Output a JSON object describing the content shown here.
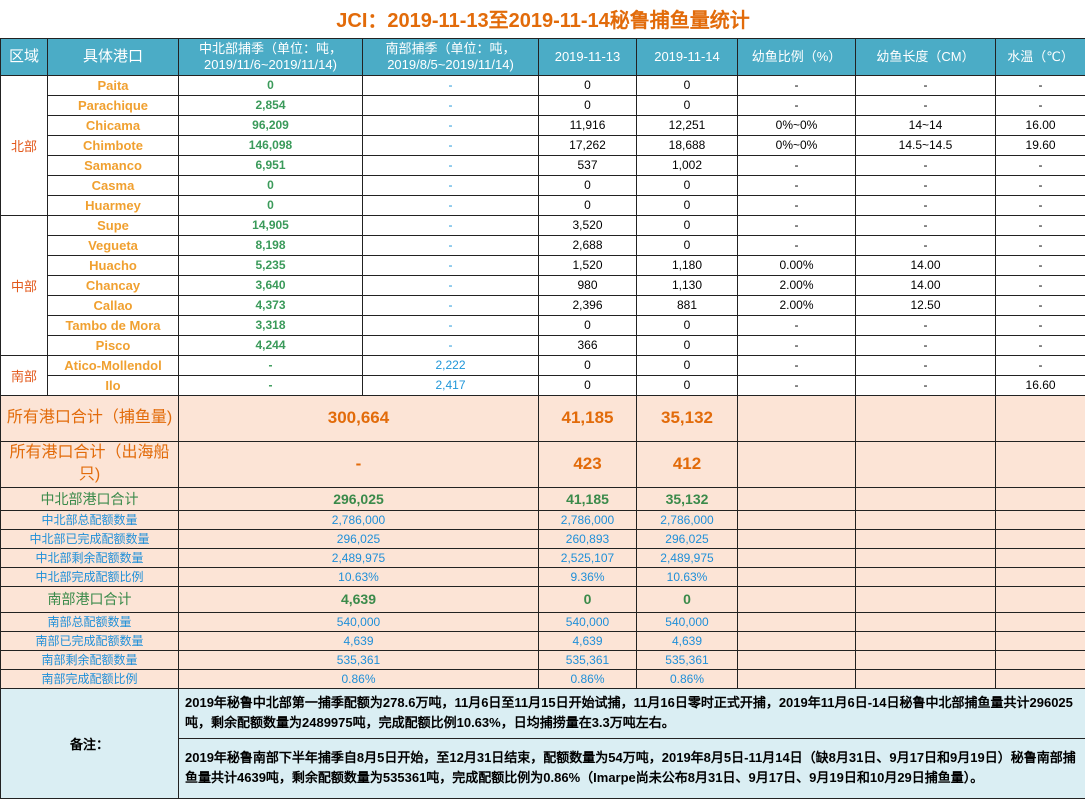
{
  "title": "JCI：2019-11-13至2019-11-14秘鲁捕鱼量统计",
  "headers": [
    "区域",
    "具体港口",
    "中北部捕季（单位：吨，2019/11/6~2019/11/14)",
    "南部捕季（单位：吨，2019/8/5~2019/11/14)",
    "2019-11-13",
    "2019-11-14",
    "幼鱼比例（%）",
    "幼鱼长度（CM）",
    "水温（℃）"
  ],
  "colors": {
    "header_bg": "#4bacc6",
    "summary_bg": "#fce4d6",
    "notes_bg": "#daeef3",
    "title": "#e26b0a",
    "port_name": "#f0a030",
    "north_value": "#3a9a5a",
    "south_value": "#1f96d8"
  },
  "regions": [
    {
      "name": "北部",
      "ports": [
        [
          "Paita",
          "0",
          "-",
          "0",
          "0",
          "-",
          "-",
          "-"
        ],
        [
          "Parachique",
          "2,854",
          "-",
          "0",
          "0",
          "-",
          "-",
          "-"
        ],
        [
          "Chicama",
          "96,209",
          "-",
          "11,916",
          "12,251",
          "0%~0%",
          "14~14",
          "16.00"
        ],
        [
          "Chimbote",
          "146,098",
          "-",
          "17,262",
          "18,688",
          "0%~0%",
          "14.5~14.5",
          "19.60"
        ],
        [
          "Samanco",
          "6,951",
          "-",
          "537",
          "1,002",
          "-",
          "-",
          "-"
        ],
        [
          "Casma",
          "0",
          "-",
          "0",
          "0",
          "-",
          "-",
          "-"
        ],
        [
          "Huarmey",
          "0",
          "-",
          "0",
          "0",
          "-",
          "-",
          "-"
        ]
      ]
    },
    {
      "name": "中部",
      "ports": [
        [
          "Supe",
          "14,905",
          "-",
          "3,520",
          "0",
          "-",
          "-",
          "-"
        ],
        [
          "Vegueta",
          "8,198",
          "-",
          "2,688",
          "0",
          "-",
          "-",
          "-"
        ],
        [
          "Huacho",
          "5,235",
          "-",
          "1,520",
          "1,180",
          "0.00%",
          "14.00",
          "-"
        ],
        [
          "Chancay",
          "3,640",
          "-",
          "980",
          "1,130",
          "2.00%",
          "14.00",
          "-"
        ],
        [
          "Callao",
          "4,373",
          "-",
          "2,396",
          "881",
          "2.00%",
          "12.50",
          "-"
        ],
        [
          "Tambo de Mora",
          "3,318",
          "-",
          "0",
          "0",
          "-",
          "-",
          "-"
        ],
        [
          "Pisco",
          "4,244",
          "-",
          "366",
          "0",
          "-",
          "-",
          "-"
        ]
      ]
    },
    {
      "name": "南部",
      "ports": [
        [
          "Atico-Mollendol",
          "-",
          "2,222",
          "0",
          "0",
          "-",
          "-",
          "-"
        ],
        [
          "Ilo",
          "-",
          "2,417",
          "0",
          "0",
          "-",
          "-",
          "16.60"
        ]
      ]
    }
  ],
  "summary": [
    {
      "type": "tot",
      "label": "所有港口合计（捕鱼量)",
      "season": "300,664",
      "d1": "41,185",
      "d2": "35,132"
    },
    {
      "type": "tot",
      "label": "所有港口合计（出海船只)",
      "season": "-",
      "d1": "423",
      "d2": "412"
    },
    {
      "type": "grn",
      "label": "中北部港口合计",
      "season": "296,025",
      "d1": "41,185",
      "d2": "35,132"
    },
    {
      "type": "blu",
      "label": "中北部总配额数量",
      "season": "2,786,000",
      "d1": "2,786,000",
      "d2": "2,786,000"
    },
    {
      "type": "blu",
      "label": "中北部已完成配额数量",
      "season": "296,025",
      "d1": "260,893",
      "d2": "296,025"
    },
    {
      "type": "blu",
      "label": "中北部剩余配额数量",
      "season": "2,489,975",
      "d1": "2,525,107",
      "d2": "2,489,975"
    },
    {
      "type": "blu",
      "label": "中北部完成配额比例",
      "season": "10.63%",
      "d1": "9.36%",
      "d2": "10.63%"
    },
    {
      "type": "grn",
      "label": "南部港口合计",
      "season": "4,639",
      "d1": "0",
      "d2": "0"
    },
    {
      "type": "blu",
      "label": "南部总配额数量",
      "season": "540,000",
      "d1": "540,000",
      "d2": "540,000"
    },
    {
      "type": "blu",
      "label": "南部已完成配额数量",
      "season": "4,639",
      "d1": "4,639",
      "d2": "4,639"
    },
    {
      "type": "blu",
      "label": "南部剩余配额数量",
      "season": "535,361",
      "d1": "535,361",
      "d2": "535,361"
    },
    {
      "type": "blu",
      "label": "南部完成配额比例",
      "season": "0.86%",
      "d1": "0.86%",
      "d2": "0.86%"
    }
  ],
  "notes": {
    "label": "备注：",
    "items": [
      "2019年秘鲁中北部第一捕季配额为278.6万吨，11月6日至11月15日开始试捕，11月16日零时正式开捕，2019年11月6日-14日秘鲁中北部捕鱼量共计296025吨，剩余配额数量为2489975吨，完成配额比例10.63%，日均捕捞量在3.3万吨左右。",
      "2019年秘鲁南部下半年捕季自8月5日开始，至12月31日结束，配额数量为54万吨，2019年8月5日-11月14日（缺8月31日、9月17日和9月19日）秘鲁南部捕鱼量共计4639吨，剩余配额数量为535361吨，完成配额比例为0.86%（Imarpe尚未公布8月31日、9月17日、9月19日和10月29日捕鱼量）。"
    ]
  }
}
